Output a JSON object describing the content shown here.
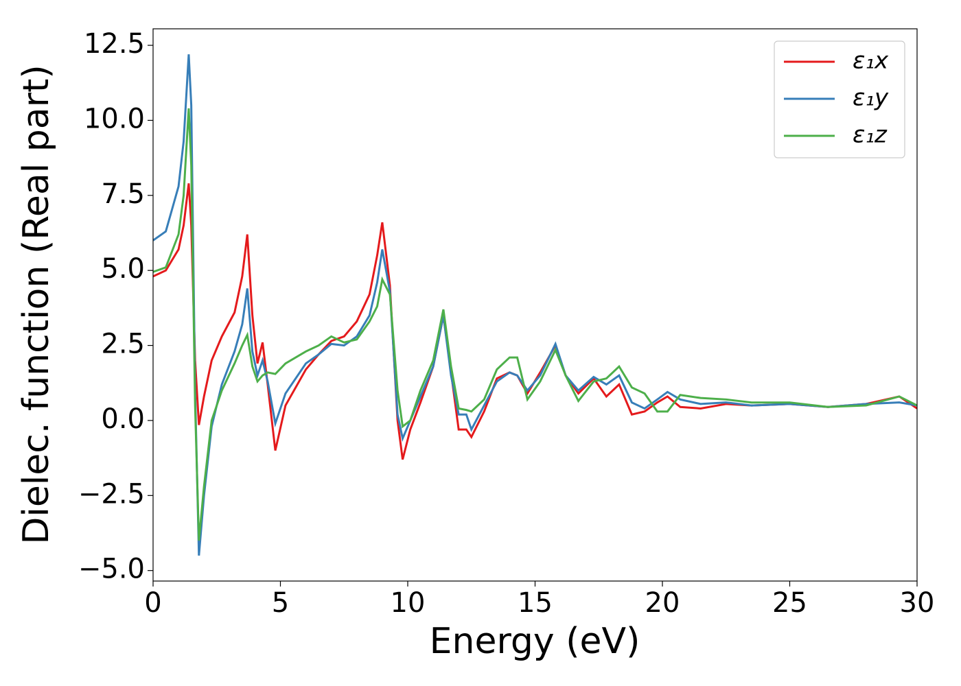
{
  "chart_data": {
    "type": "line",
    "xlabel": "Energy (eV)",
    "ylabel": "Dielec. function (Real part)",
    "x": [
      0,
      0.5,
      1.0,
      1.2,
      1.4,
      1.5,
      1.65,
      1.8,
      2.0,
      2.3,
      2.7,
      3.2,
      3.5,
      3.7,
      3.9,
      4.1,
      4.3,
      4.5,
      4.8,
      5.2,
      6.0,
      6.5,
      7.0,
      7.5,
      8.0,
      8.5,
      8.8,
      9.0,
      9.3,
      9.6,
      9.8,
      10.1,
      10.5,
      11.0,
      11.4,
      11.7,
      12.0,
      12.3,
      12.5,
      13.0,
      13.5,
      14.0,
      14.3,
      14.7,
      15.2,
      15.8,
      16.2,
      16.7,
      17.3,
      17.8,
      18.3,
      18.8,
      19.3,
      19.8,
      20.2,
      20.7,
      21.5,
      22.5,
      23.5,
      25,
      26.5,
      28,
      29.3,
      30
    ],
    "series": [
      {
        "name": "ε₁x",
        "color": "#e41a1c",
        "values": [
          4.8,
          5.0,
          5.7,
          6.5,
          7.9,
          6.5,
          2.0,
          -0.15,
          0.8,
          2.0,
          2.8,
          3.6,
          4.8,
          6.2,
          3.5,
          1.9,
          2.6,
          1.2,
          -1.0,
          0.5,
          1.7,
          2.2,
          2.65,
          2.8,
          3.3,
          4.2,
          5.5,
          6.6,
          4.5,
          0.0,
          -1.3,
          -0.3,
          0.6,
          1.8,
          3.5,
          1.6,
          -0.3,
          -0.3,
          -0.55,
          0.3,
          1.4,
          1.6,
          1.5,
          0.9,
          1.6,
          2.5,
          1.5,
          0.9,
          1.4,
          0.8,
          1.2,
          0.2,
          0.3,
          0.6,
          0.8,
          0.45,
          0.4,
          0.55,
          0.5,
          0.55,
          0.45,
          0.55,
          0.8,
          0.4
        ]
      },
      {
        "name": "ε₁y",
        "color": "#377eb8",
        "values": [
          6.0,
          6.3,
          7.8,
          9.3,
          12.2,
          10.5,
          1.0,
          -4.5,
          -2.5,
          -0.2,
          1.2,
          2.3,
          3.2,
          4.4,
          2.3,
          1.5,
          2.0,
          1.3,
          -0.1,
          0.9,
          1.9,
          2.2,
          2.55,
          2.5,
          2.8,
          3.5,
          4.6,
          5.7,
          4.3,
          0.2,
          -0.6,
          0.0,
          0.8,
          1.8,
          3.5,
          1.5,
          0.2,
          0.2,
          -0.3,
          0.5,
          1.3,
          1.6,
          1.5,
          1.0,
          1.5,
          2.55,
          1.5,
          1.0,
          1.45,
          1.2,
          1.5,
          0.6,
          0.4,
          0.7,
          0.95,
          0.7,
          0.55,
          0.6,
          0.5,
          0.55,
          0.45,
          0.55,
          0.6,
          0.5
        ]
      },
      {
        "name": "ε₁z",
        "color": "#4daf4a",
        "values": [
          4.95,
          5.1,
          6.2,
          7.5,
          10.4,
          8.5,
          0.5,
          -4.0,
          -2.2,
          0.0,
          1.0,
          1.9,
          2.5,
          2.85,
          1.8,
          1.3,
          1.5,
          1.6,
          1.55,
          1.9,
          2.3,
          2.5,
          2.8,
          2.6,
          2.7,
          3.3,
          3.8,
          4.7,
          4.2,
          1.0,
          -0.2,
          0.0,
          1.0,
          2.0,
          3.7,
          1.8,
          0.4,
          0.35,
          0.3,
          0.7,
          1.7,
          2.1,
          2.1,
          0.7,
          1.3,
          2.35,
          1.5,
          0.65,
          1.3,
          1.4,
          1.8,
          1.1,
          0.9,
          0.3,
          0.3,
          0.85,
          0.75,
          0.7,
          0.6,
          0.6,
          0.45,
          0.5,
          0.8,
          0.5
        ]
      }
    ],
    "xlim": [
      0,
      30
    ],
    "ylim": [
      -5.35,
      13.05
    ],
    "xticks": [
      0,
      5,
      10,
      15,
      20,
      25,
      30
    ],
    "yticks": [
      {
        "value": -5,
        "label": "−5.0"
      },
      {
        "value": -2.5,
        "label": "−2.5"
      },
      {
        "value": 0,
        "label": "0.0"
      },
      {
        "value": 2.5,
        "label": "2.5"
      },
      {
        "value": 5,
        "label": "5.0"
      },
      {
        "value": 7.5,
        "label": "7.5"
      },
      {
        "value": 10,
        "label": "10.0"
      },
      {
        "value": 12.5,
        "label": "12.5"
      }
    ],
    "legend": "upper right",
    "grid": false
  }
}
